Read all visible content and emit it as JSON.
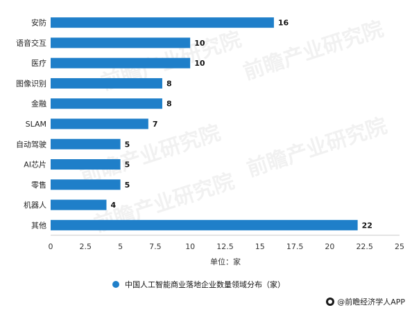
{
  "chart_data": {
    "type": "bar",
    "orientation": "horizontal",
    "categories": [
      "安防",
      "语音交互",
      "医疗",
      "图像识别",
      "金融",
      "SLAM",
      "自动驾驶",
      "AI芯片",
      "零售",
      "机器人",
      "其他"
    ],
    "values": [
      16,
      10,
      10,
      8,
      8,
      7,
      5,
      5,
      5,
      4,
      22
    ],
    "xlabel": "单位：家",
    "xlim": [
      0,
      25
    ],
    "xticks": [
      "0",
      "2.5",
      "5",
      "7.5",
      "10",
      "12.5",
      "15",
      "17.5",
      "20",
      "22.5",
      "25"
    ],
    "series": [
      {
        "name": "中国人工智能商业落地企业数量领域分布（家）",
        "color": "#1f7fc9"
      }
    ],
    "legend_position": "bottom",
    "grid": false
  },
  "watermark": {
    "text": "前瞻产业研究院"
  },
  "source": {
    "text": "@前瞻经济学人APP"
  }
}
